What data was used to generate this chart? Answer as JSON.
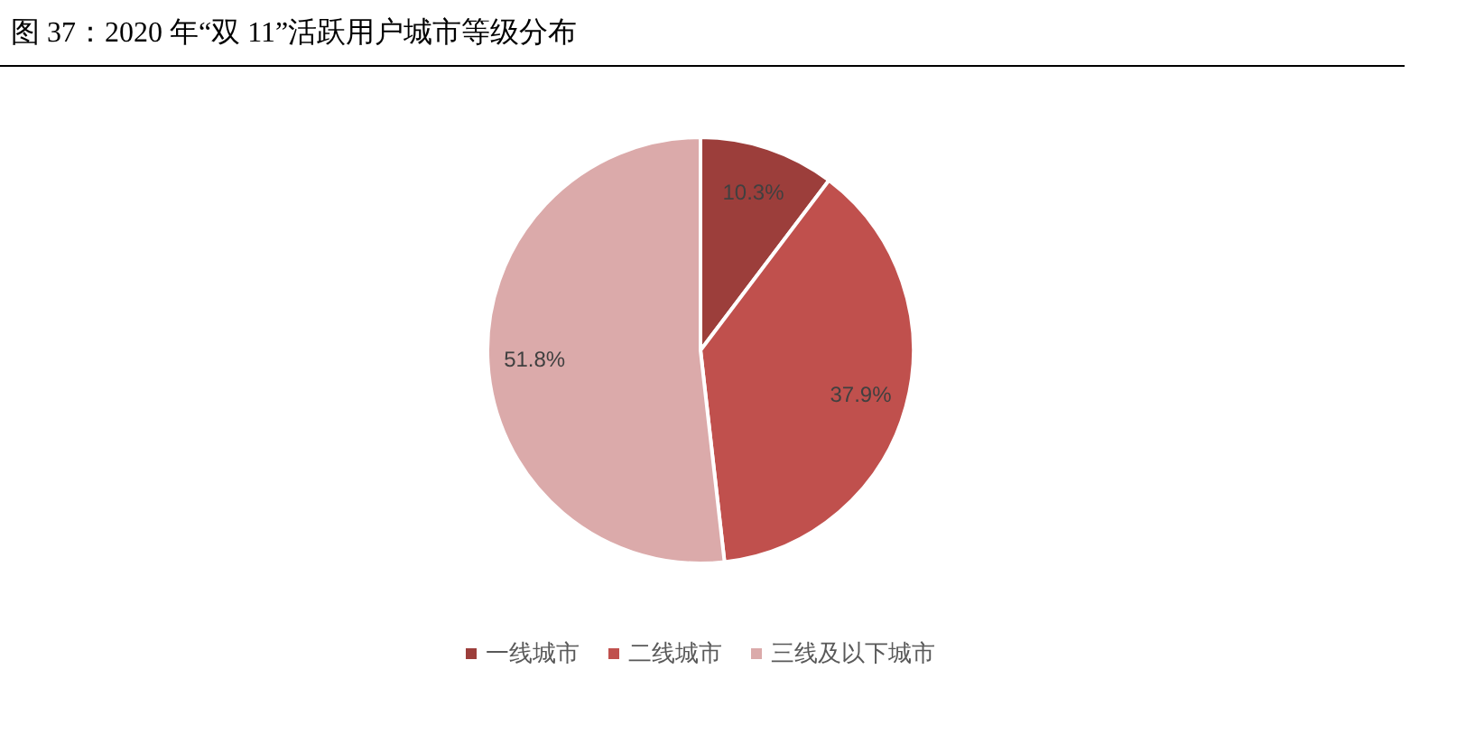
{
  "chart_data": {
    "type": "pie",
    "title": "图 37：2020 年“双 11”活跃用户城市等级分布",
    "categories": [
      "一线城市",
      "二线城市",
      "三线及以下城市"
    ],
    "values": [
      10.3,
      37.9,
      51.8
    ],
    "colors": [
      "#9c3e3b",
      "#c0504d",
      "#dbaaaa"
    ],
    "value_labels": [
      "10.3%",
      "37.9%",
      "51.8%"
    ],
    "legend": "bottom"
  }
}
